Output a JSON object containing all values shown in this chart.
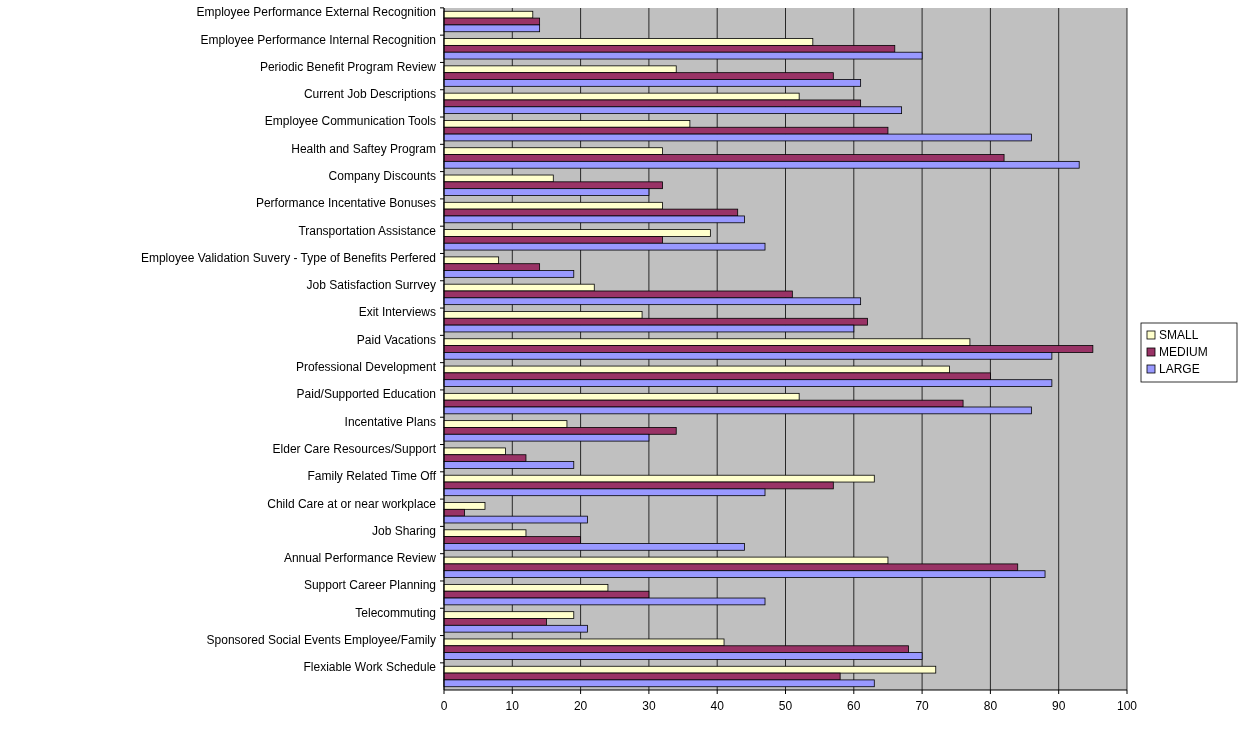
{
  "chart_data": {
    "type": "bar",
    "orientation": "horizontal",
    "categories": [
      "Employee Performance External Recognition",
      "Employee Performance Internal Recognition",
      "Periodic Benefit Program Review",
      "Current Job Descriptions",
      "Employee Communication Tools",
      "Health and Saftey Program",
      "Company Discounts",
      "Performance Incentative Bonuses",
      "Transportation Assistance",
      "Employee Validation Suvery - Type of Benefits Perfered",
      "Job Satisfaction Surrvey",
      "Exit Interviews",
      "Paid Vacations",
      "Professional Development",
      "Paid/Supported Education",
      "Incentative Plans",
      "Elder Care Resources/Support",
      "Family Related Time Off",
      "Child Care at or near workplace",
      "Job Sharing",
      "Annual Performance Review",
      "Support Career Planning",
      "Telecommuting",
      "Sponsored Social Events Employee/Family",
      "Flexiable Work Schedule"
    ],
    "series": [
      {
        "name": "SMALL",
        "color": "#ffffcc",
        "values": [
          13,
          54,
          34,
          52,
          36,
          32,
          16,
          32,
          39,
          8,
          22,
          29,
          77,
          74,
          52,
          18,
          9,
          63,
          6,
          12,
          65,
          24,
          19,
          41,
          72
        ]
      },
      {
        "name": "MEDIUM",
        "color": "#993366",
        "values": [
          14,
          66,
          57,
          61,
          65,
          82,
          32,
          43,
          32,
          14,
          51,
          62,
          95,
          80,
          76,
          34,
          12,
          57,
          3,
          20,
          84,
          30,
          15,
          68,
          58
        ]
      },
      {
        "name": "LARGE",
        "color": "#9999ff",
        "values": [
          14,
          70,
          61,
          67,
          86,
          93,
          30,
          44,
          47,
          19,
          61,
          60,
          89,
          89,
          86,
          30,
          19,
          47,
          21,
          44,
          88,
          47,
          21,
          70,
          63
        ]
      }
    ],
    "xlim": [
      0,
      100
    ],
    "xticks": [
      0,
      10,
      20,
      30,
      40,
      50,
      60,
      70,
      80,
      90,
      100
    ],
    "grid": "x",
    "legend": "right"
  }
}
